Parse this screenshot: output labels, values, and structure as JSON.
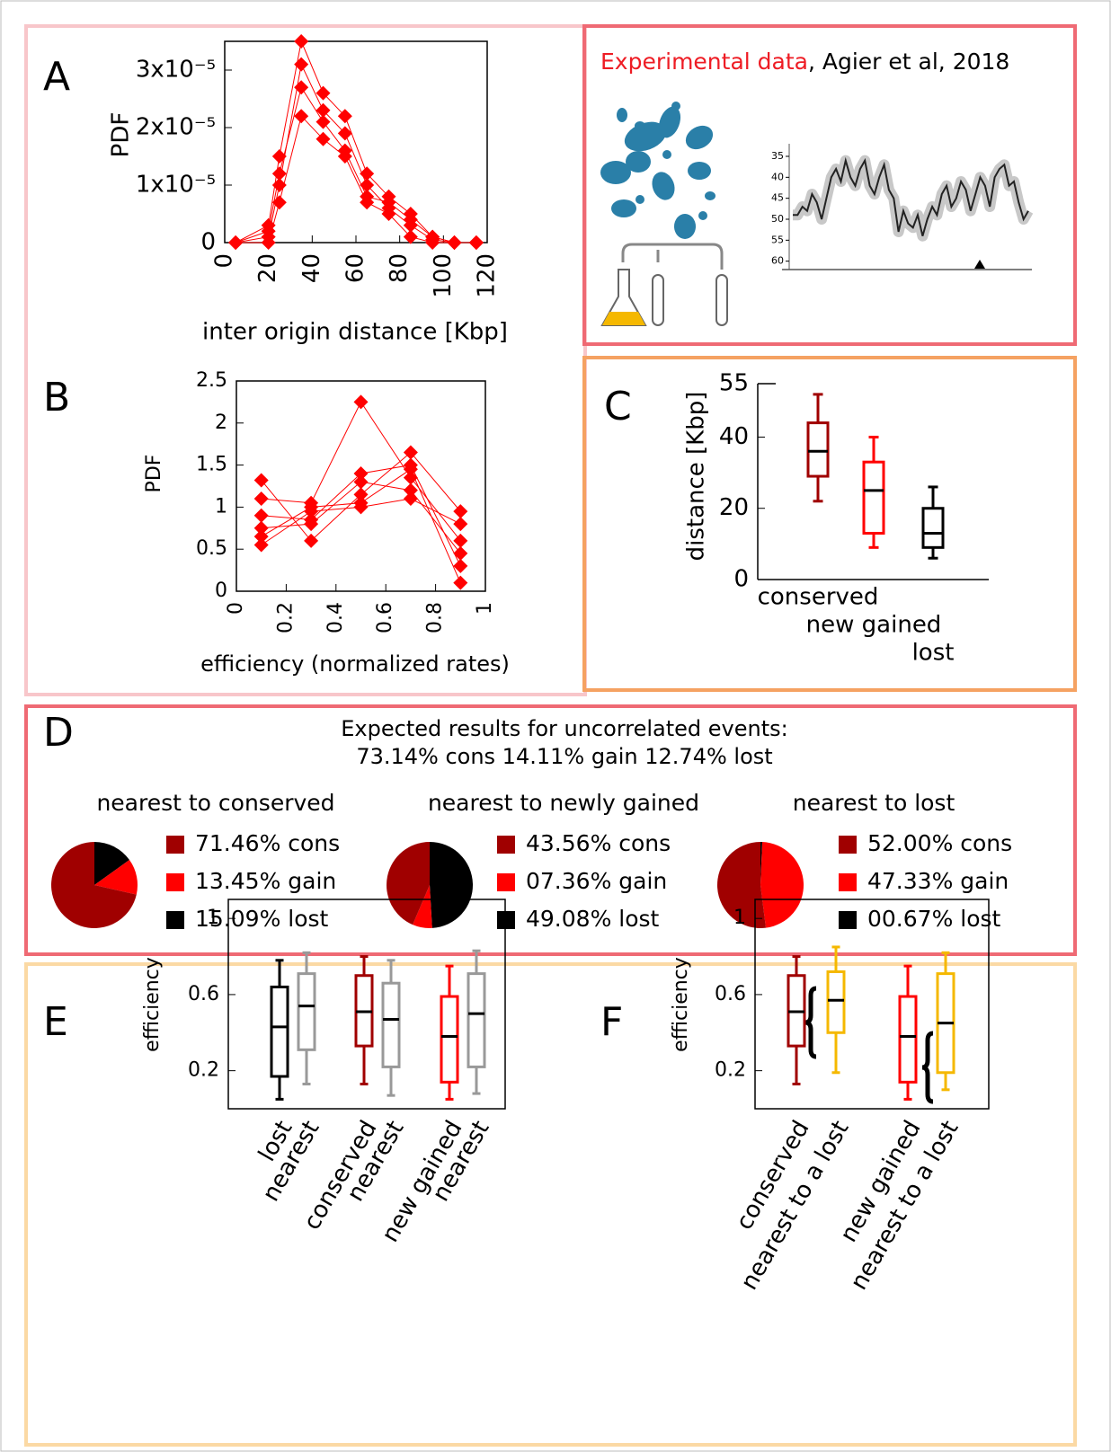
{
  "chart_data": [
    {
      "type": "line",
      "panel": "A",
      "ylabel": "PDF",
      "xlabel": "inter origin distance [Kbp]",
      "marker": "diamond",
      "x": [
        5,
        20,
        25,
        35,
        45,
        55,
        65,
        75,
        85,
        95,
        105,
        115
      ],
      "series": [
        {
          "color": "#ff0000",
          "values": [
            0,
            3e-06,
            1.5e-05,
            3.5e-05,
            2.6e-05,
            2.2e-05,
            1.2e-05,
            8e-06,
            5e-06,
            1e-06,
            0,
            0
          ]
        },
        {
          "color": "#ff0000",
          "values": [
            0,
            1e-06,
            1e-05,
            3.1e-05,
            2.3e-05,
            1.9e-05,
            1e-05,
            6e-06,
            3e-06,
            5e-07,
            0,
            0
          ]
        },
        {
          "color": "#ff0000",
          "values": [
            0,
            2e-06,
            1.2e-05,
            2.7e-05,
            2.1e-05,
            1.6e-05,
            8e-06,
            7e-06,
            4e-06,
            1e-06,
            0,
            0
          ]
        },
        {
          "color": "#ff0000",
          "values": [
            0,
            0,
            7e-06,
            2.2e-05,
            1.8e-05,
            1.5e-05,
            7e-06,
            5e-06,
            1e-06,
            0,
            0,
            0
          ]
        }
      ],
      "xlim": [
        0,
        120
      ],
      "xticks": [
        0,
        20,
        40,
        60,
        80,
        100,
        120
      ],
      "ylim": [
        0,
        3.5e-05
      ],
      "yticks": [
        0,
        {
          "value": 1e-05,
          "label": "1x10⁻⁵"
        },
        {
          "value": 2e-05,
          "label": "2x10⁻⁵"
        },
        {
          "value": 3e-05,
          "label": "3x10⁻⁵"
        }
      ]
    },
    {
      "type": "line",
      "panel": "B",
      "ylabel": "PDF",
      "xlabel": "efficiency (normalized rates)",
      "marker": "diamond",
      "x": [
        0.1,
        0.3,
        0.5,
        0.7,
        0.9
      ],
      "series": [
        {
          "color": "#ff0000",
          "values": [
            1.32,
            0.6,
            1.15,
            1.65,
            0.95
          ]
        },
        {
          "color": "#ff0000",
          "values": [
            1.1,
            1.05,
            2.25,
            1.35,
            0.6
          ]
        },
        {
          "color": "#ff0000",
          "values": [
            0.9,
            0.85,
            1.4,
            1.5,
            0.3
          ]
        },
        {
          "color": "#ff0000",
          "values": [
            0.55,
            0.95,
            1.0,
            1.1,
            0.8
          ]
        },
        {
          "color": "#ff0000",
          "values": [
            0.75,
            0.8,
            1.3,
            1.2,
            0.45
          ]
        },
        {
          "color": "#ff0000",
          "values": [
            0.65,
            1.0,
            1.05,
            1.45,
            0.1
          ]
        }
      ],
      "xlim": [
        0,
        1
      ],
      "xticks": [
        0,
        0.2,
        0.4,
        0.6,
        0.8,
        1
      ],
      "ylim": [
        0,
        2.5
      ],
      "yticks": [
        0,
        0.5,
        1,
        1.5,
        2,
        2.5
      ]
    },
    {
      "type": "box",
      "panel": "C",
      "ylabel": "distance [Kbp]",
      "categories": [
        "conserved",
        "new gained",
        "lost"
      ],
      "colors": [
        "#a00000",
        "#ff0000",
        "#000000"
      ],
      "label_colors": [
        "#a00000",
        "#ff0000",
        "#000000"
      ],
      "boxes": [
        {
          "whislo": 22,
          "q1": 29,
          "med": 36,
          "q3": 44,
          "whishi": 52
        },
        {
          "whislo": 9,
          "q1": 13,
          "med": 25,
          "q3": 33,
          "whishi": 40
        },
        {
          "whislo": 6,
          "q1": 9,
          "med": 13,
          "q3": 20,
          "whishi": 26
        }
      ],
      "ylim": [
        0,
        55
      ],
      "yticks": [
        0,
        20,
        40,
        55
      ]
    },
    {
      "type": "pie",
      "title": "nearest to conserved",
      "values": [
        71.46,
        13.45,
        15.09
      ],
      "value_labels": [
        "71.46% cons",
        "13.45% gain",
        "15.09% lost"
      ],
      "colors": [
        "#a00000",
        "#ff0000",
        "#000000"
      ]
    },
    {
      "type": "pie",
      "title": "nearest to newly gained",
      "values": [
        43.56,
        7.36,
        49.08
      ],
      "value_labels": [
        "43.56% cons",
        "07.36% gain",
        "49.08% lost"
      ],
      "colors": [
        "#a00000",
        "#ff0000",
        "#000000"
      ]
    },
    {
      "type": "pie",
      "title": "nearest to lost",
      "values": [
        52.0,
        47.33,
        0.67
      ],
      "value_labels": [
        "52.00% cons",
        "47.33% gain",
        "00.67% lost"
      ],
      "colors": [
        "#a00000",
        "#ff0000",
        "#000000"
      ]
    },
    {
      "type": "box",
      "panel": "E",
      "ylabel": "efficiency",
      "categories": [
        "lost",
        "nearest",
        "conserved",
        "nearest",
        "new gained",
        "nearest"
      ],
      "colors": [
        "#000000",
        "#999999",
        "#a00000",
        "#999999",
        "#ff0000",
        "#999999"
      ],
      "label_colors": [
        "#000000",
        "#999999",
        "#a00000",
        "#999999",
        "#ff0000",
        "#999999"
      ],
      "boxes": [
        {
          "whislo": 0.05,
          "q1": 0.17,
          "med": 0.43,
          "q3": 0.64,
          "whishi": 0.78
        },
        {
          "whislo": 0.13,
          "q1": 0.31,
          "med": 0.54,
          "q3": 0.71,
          "whishi": 0.82
        },
        {
          "whislo": 0.13,
          "q1": 0.33,
          "med": 0.51,
          "q3": 0.7,
          "whishi": 0.8
        },
        {
          "whislo": 0.07,
          "q1": 0.22,
          "med": 0.47,
          "q3": 0.66,
          "whishi": 0.78
        },
        {
          "whislo": 0.05,
          "q1": 0.14,
          "med": 0.38,
          "q3": 0.59,
          "whishi": 0.75
        },
        {
          "whislo": 0.08,
          "q1": 0.22,
          "med": 0.5,
          "q3": 0.71,
          "whishi": 0.83
        }
      ],
      "ylim": [
        0,
        1.1
      ],
      "yticks": [
        0.2,
        0.6,
        1
      ]
    },
    {
      "type": "box",
      "panel": "F",
      "ylabel": "efficiency",
      "categories": [
        "conserved",
        "nearest to a lost",
        "new gained",
        "nearest to a lost"
      ],
      "colors": [
        "#a00000",
        "#f5b800",
        "#ff0000",
        "#f5b800"
      ],
      "label_colors": [
        "#a00000",
        "#999999",
        "#ff0000",
        "#999999"
      ],
      "boxes": [
        {
          "whislo": 0.13,
          "q1": 0.33,
          "med": 0.51,
          "q3": 0.7,
          "whishi": 0.8
        },
        {
          "whislo": 0.19,
          "q1": 0.4,
          "med": 0.57,
          "q3": 0.72,
          "whishi": 0.85
        },
        {
          "whislo": 0.05,
          "q1": 0.14,
          "med": 0.38,
          "q3": 0.59,
          "whishi": 0.75
        },
        {
          "whislo": 0.1,
          "q1": 0.19,
          "med": 0.45,
          "q3": 0.71,
          "whishi": 0.82
        }
      ],
      "ylim": [
        0,
        1.1
      ],
      "yticks": [
        0.2,
        0.6,
        1
      ]
    },
    {
      "type": "line",
      "y_inverted": true,
      "color": "#222222",
      "series": [
        {
          "color": "#222222",
          "values": [
            49,
            49,
            47,
            48,
            44,
            46,
            50,
            45,
            40,
            38,
            41,
            36,
            40,
            42,
            38,
            36,
            42,
            44,
            40,
            37,
            43,
            45,
            53,
            48,
            51,
            52,
            49,
            54,
            50,
            47,
            49,
            44,
            42,
            47,
            45,
            41,
            43,
            48,
            44,
            40,
            42,
            47,
            40,
            38,
            37,
            42,
            41,
            46,
            50,
            48
          ]
        }
      ],
      "ylim": [
        32,
        62
      ],
      "yticks": [
        35,
        40,
        45,
        50,
        55,
        60
      ]
    }
  ],
  "experimental": {
    "title_highlight": "Experimental data",
    "title_rest": ", Agier et al, 2018"
  },
  "panel_d": {
    "label": "D",
    "title": "Expected results for uncorrelated events:",
    "subtitle": "73.14% cons  14.11% gain  12.74% lost"
  }
}
